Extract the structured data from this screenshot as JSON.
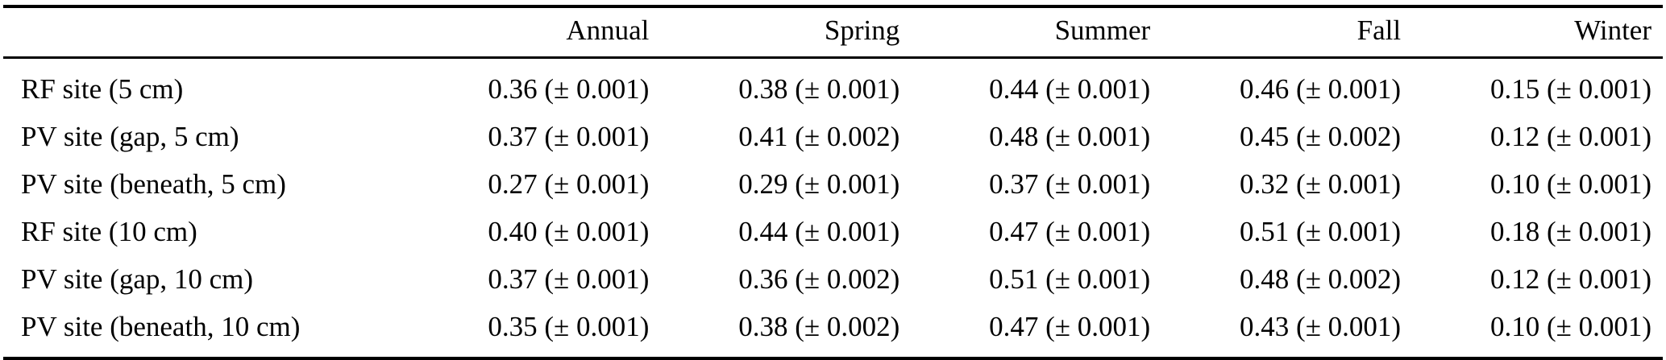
{
  "table": {
    "columns": [
      "",
      "Annual",
      "Spring",
      "Summer",
      "Fall",
      "Winter"
    ],
    "rows": [
      {
        "label": "RF site (5 cm)",
        "values": [
          "0.36 (± 0.001)",
          "0.38 (± 0.001)",
          "0.44 (± 0.001)",
          "0.46 (± 0.001)",
          "0.15 (± 0.001)"
        ]
      },
      {
        "label": "PV site (gap, 5 cm)",
        "values": [
          "0.37 (± 0.001)",
          "0.41 (± 0.002)",
          "0.48 (± 0.001)",
          "0.45 (± 0.002)",
          "0.12 (± 0.001)"
        ]
      },
      {
        "label": "PV site (beneath, 5 cm)",
        "values": [
          "0.27 (± 0.001)",
          "0.29 (± 0.001)",
          "0.37 (± 0.001)",
          "0.32 (± 0.001)",
          "0.10 (± 0.001)"
        ]
      },
      {
        "label": "RF site (10 cm)",
        "values": [
          "0.40 (± 0.001)",
          "0.44 (± 0.001)",
          "0.47 (± 0.001)",
          "0.51 (± 0.001)",
          "0.18 (± 0.001)"
        ]
      },
      {
        "label": "PV site (gap, 10 cm)",
        "values": [
          "0.37 (± 0.001)",
          "0.36 (± 0.002)",
          "0.51 (± 0.001)",
          "0.48 (± 0.002)",
          "0.12 (± 0.001)"
        ]
      },
      {
        "label": "PV site (beneath, 10 cm)",
        "values": [
          "0.35 (± 0.001)",
          "0.38 (± 0.002)",
          "0.47 (± 0.001)",
          "0.43 (± 0.001)",
          "0.10 (± 0.001)"
        ]
      }
    ]
  }
}
